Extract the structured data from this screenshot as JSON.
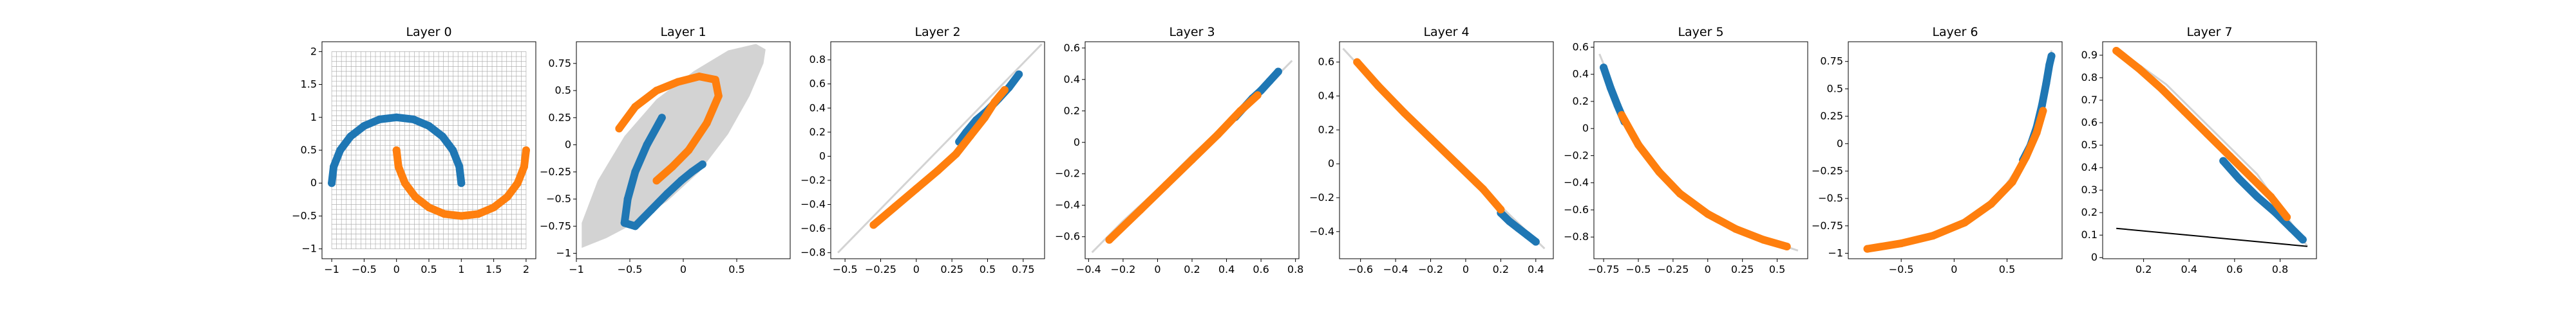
{
  "colors": {
    "blue": "#1f77b4",
    "orange": "#ff7f0e",
    "manifold": "#d3d3d3",
    "grid": "#b0b0b0",
    "axis": "#000000"
  },
  "chart_data": [
    {
      "type": "scatter",
      "title": "Layer 0",
      "xlim": [
        -1.15,
        2.15
      ],
      "ylim": [
        -1.15,
        2.15
      ],
      "xticks": [
        -1.0,
        -0.5,
        0.0,
        0.5,
        1.0,
        1.5,
        2.0
      ],
      "yticks": [
        -1.0,
        -0.5,
        0.0,
        0.5,
        1.0,
        1.5,
        2.0
      ],
      "grid_region": {
        "x": [
          -1.0,
          2.0
        ],
        "y": [
          -1.0,
          2.0
        ]
      },
      "series": [
        {
          "color": "blue",
          "points": [
            [
              -1.0,
              0.0
            ],
            [
              -0.97,
              0.25
            ],
            [
              -0.87,
              0.5
            ],
            [
              -0.71,
              0.71
            ],
            [
              -0.5,
              0.87
            ],
            [
              -0.26,
              0.97
            ],
            [
              0.0,
              1.0
            ],
            [
              0.26,
              0.97
            ],
            [
              0.5,
              0.87
            ],
            [
              0.71,
              0.71
            ],
            [
              0.87,
              0.5
            ],
            [
              0.97,
              0.25
            ],
            [
              1.0,
              0.0
            ]
          ]
        },
        {
          "color": "orange",
          "points": [
            [
              0.0,
              0.5
            ],
            [
              0.03,
              0.25
            ],
            [
              0.13,
              0.0
            ],
            [
              0.29,
              -0.21
            ],
            [
              0.5,
              -0.37
            ],
            [
              0.74,
              -0.47
            ],
            [
              1.0,
              -0.5
            ],
            [
              1.26,
              -0.47
            ],
            [
              1.5,
              -0.37
            ],
            [
              1.71,
              -0.21
            ],
            [
              1.87,
              0.0
            ],
            [
              1.97,
              0.25
            ],
            [
              2.0,
              0.5
            ]
          ]
        }
      ]
    },
    {
      "type": "scatter",
      "title": "Layer 1",
      "xlim": [
        -1.0,
        1.0
      ],
      "ylim": [
        -1.05,
        0.95
      ],
      "xticks": [
        -1.0,
        -0.5,
        0.0,
        0.5
      ],
      "yticks": [
        -1.0,
        -0.75,
        -0.5,
        -0.25,
        0.0,
        0.25,
        0.5,
        0.75
      ],
      "manifold": [
        [
          -0.95,
          -0.95
        ],
        [
          -0.72,
          -0.86
        ],
        [
          -0.45,
          -0.72
        ],
        [
          -0.15,
          -0.52
        ],
        [
          0.15,
          -0.25
        ],
        [
          0.42,
          0.1
        ],
        [
          0.62,
          0.45
        ],
        [
          0.75,
          0.75
        ],
        [
          0.77,
          0.88
        ],
        [
          0.68,
          0.93
        ],
        [
          0.42,
          0.87
        ],
        [
          0.1,
          0.68
        ],
        [
          -0.25,
          0.42
        ],
        [
          -0.55,
          0.08
        ],
        [
          -0.8,
          -0.33
        ],
        [
          -0.95,
          -0.72
        ]
      ],
      "series": [
        {
          "color": "blue",
          "points": [
            [
              -0.2,
              0.25
            ],
            [
              -0.34,
              0.0
            ],
            [
              -0.45,
              -0.25
            ],
            [
              -0.52,
              -0.5
            ],
            [
              -0.55,
              -0.72
            ],
            [
              -0.45,
              -0.75
            ],
            [
              -0.3,
              -0.6
            ],
            [
              -0.15,
              -0.45
            ],
            [
              -0.02,
              -0.33
            ],
            [
              0.08,
              -0.25
            ],
            [
              0.18,
              -0.18
            ]
          ]
        },
        {
          "color": "orange",
          "points": [
            [
              -0.6,
              0.15
            ],
            [
              -0.45,
              0.35
            ],
            [
              -0.25,
              0.5
            ],
            [
              -0.05,
              0.58
            ],
            [
              0.15,
              0.63
            ],
            [
              0.3,
              0.6
            ],
            [
              0.33,
              0.45
            ],
            [
              0.22,
              0.2
            ],
            [
              0.05,
              -0.05
            ],
            [
              -0.1,
              -0.2
            ],
            [
              -0.25,
              -0.33
            ]
          ]
        }
      ]
    },
    {
      "type": "scatter",
      "title": "Layer 2",
      "xlim": [
        -0.6,
        0.9
      ],
      "ylim": [
        -0.85,
        0.95
      ],
      "xticks": [
        -0.5,
        -0.25,
        0.0,
        0.25,
        0.5,
        0.75
      ],
      "yticks": [
        -0.8,
        -0.6,
        -0.4,
        -0.2,
        0.0,
        0.2,
        0.4,
        0.6,
        0.8
      ],
      "manifold": [
        [
          -0.55,
          -0.8
        ],
        [
          0.88,
          0.93
        ]
      ],
      "series": [
        {
          "color": "blue",
          "points": [
            [
              0.3,
              0.12
            ],
            [
              0.35,
              0.2
            ],
            [
              0.42,
              0.3
            ],
            [
              0.5,
              0.38
            ],
            [
              0.58,
              0.48
            ],
            [
              0.65,
              0.57
            ],
            [
              0.72,
              0.68
            ]
          ]
        },
        {
          "color": "orange",
          "points": [
            [
              -0.3,
              -0.57
            ],
            [
              -0.15,
              -0.42
            ],
            [
              0.0,
              -0.27
            ],
            [
              0.15,
              -0.12
            ],
            [
              0.28,
              0.02
            ],
            [
              0.38,
              0.17
            ],
            [
              0.48,
              0.32
            ],
            [
              0.55,
              0.45
            ],
            [
              0.62,
              0.55
            ]
          ]
        }
      ]
    },
    {
      "type": "scatter",
      "title": "Layer 3",
      "xlim": [
        -0.42,
        0.82
      ],
      "ylim": [
        -0.74,
        0.64
      ],
      "xticks": [
        -0.4,
        -0.2,
        0.0,
        0.2,
        0.4,
        0.6,
        0.8
      ],
      "yticks": [
        -0.6,
        -0.4,
        -0.2,
        0.0,
        0.2,
        0.4,
        0.6
      ],
      "manifold": [
        [
          -0.38,
          -0.7
        ],
        [
          -0.2,
          -0.5
        ],
        [
          0.0,
          -0.3
        ],
        [
          0.2,
          -0.08
        ],
        [
          0.4,
          0.12
        ],
        [
          0.6,
          0.32
        ],
        [
          0.78,
          0.52
        ]
      ],
      "series": [
        {
          "color": "blue",
          "points": [
            [
              0.45,
              0.16
            ],
            [
              0.5,
              0.22
            ],
            [
              0.55,
              0.28
            ],
            [
              0.6,
              0.33
            ],
            [
              0.65,
              0.39
            ],
            [
              0.7,
              0.45
            ]
          ]
        },
        {
          "color": "orange",
          "points": [
            [
              -0.28,
              -0.62
            ],
            [
              -0.1,
              -0.43
            ],
            [
              0.05,
              -0.27
            ],
            [
              0.2,
              -0.11
            ],
            [
              0.35,
              0.05
            ],
            [
              0.48,
              0.2
            ],
            [
              0.58,
              0.3
            ]
          ]
        }
      ]
    },
    {
      "type": "scatter",
      "title": "Layer 4",
      "xlim": [
        -0.72,
        0.5
      ],
      "ylim": [
        -0.56,
        0.72
      ],
      "xticks": [
        -0.6,
        -0.4,
        -0.2,
        0.0,
        0.2,
        0.4
      ],
      "yticks": [
        -0.4,
        -0.2,
        0.0,
        0.2,
        0.4,
        0.6
      ],
      "manifold": [
        [
          -0.7,
          0.68
        ],
        [
          -0.45,
          0.4
        ],
        [
          -0.2,
          0.15
        ],
        [
          0.0,
          -0.05
        ],
        [
          0.2,
          -0.25
        ],
        [
          0.45,
          -0.5
        ]
      ],
      "series": [
        {
          "color": "blue",
          "points": [
            [
              0.2,
              -0.29
            ],
            [
              0.25,
              -0.34
            ],
            [
              0.3,
              -0.38
            ],
            [
              0.35,
              -0.42
            ],
            [
              0.4,
              -0.46
            ]
          ]
        },
        {
          "color": "orange",
          "points": [
            [
              -0.62,
              0.6
            ],
            [
              -0.5,
              0.46
            ],
            [
              -0.35,
              0.3
            ],
            [
              -0.2,
              0.15
            ],
            [
              -0.05,
              0.0
            ],
            [
              0.1,
              -0.15
            ],
            [
              0.2,
              -0.27
            ]
          ]
        }
      ]
    },
    {
      "type": "scatter",
      "title": "Layer 5",
      "xlim": [
        -0.82,
        0.72
      ],
      "ylim": [
        -0.96,
        0.64
      ],
      "xticks": [
        -0.75,
        -0.5,
        -0.25,
        0.0,
        0.25,
        0.5
      ],
      "yticks": [
        -0.8,
        -0.6,
        -0.4,
        -0.2,
        0.0,
        0.2,
        0.4,
        0.6
      ],
      "manifold": [
        [
          -0.78,
          0.55
        ],
        [
          -0.6,
          0.1
        ],
        [
          -0.4,
          -0.25
        ],
        [
          -0.2,
          -0.48
        ],
        [
          0.0,
          -0.63
        ],
        [
          0.3,
          -0.78
        ],
        [
          0.65,
          -0.9
        ]
      ],
      "series": [
        {
          "color": "blue",
          "points": [
            [
              -0.75,
              0.45
            ],
            [
              -0.7,
              0.3
            ],
            [
              -0.65,
              0.17
            ],
            [
              -0.6,
              0.05
            ]
          ]
        },
        {
          "color": "orange",
          "points": [
            [
              -0.62,
              0.1
            ],
            [
              -0.5,
              -0.12
            ],
            [
              -0.35,
              -0.32
            ],
            [
              -0.2,
              -0.48
            ],
            [
              0.0,
              -0.63
            ],
            [
              0.2,
              -0.74
            ],
            [
              0.4,
              -0.82
            ],
            [
              0.57,
              -0.87
            ]
          ]
        }
      ]
    },
    {
      "type": "scatter",
      "title": "Layer 6",
      "xlim": [
        -1.0,
        1.02
      ],
      "ylim": [
        -1.05,
        0.93
      ],
      "xticks": [
        -0.5,
        0.0,
        0.5
      ],
      "yticks": [
        -1.0,
        -0.75,
        -0.5,
        -0.25,
        0.0,
        0.25,
        0.5,
        0.75
      ],
      "manifold": [
        [
          -0.85,
          -0.97
        ],
        [
          -0.4,
          -0.88
        ],
        [
          0.0,
          -0.75
        ],
        [
          0.4,
          -0.5
        ],
        [
          0.65,
          -0.15
        ],
        [
          0.82,
          0.3
        ],
        [
          0.92,
          0.85
        ]
      ],
      "series": [
        {
          "color": "blue",
          "points": [
            [
              0.65,
              -0.15
            ],
            [
              0.72,
              -0.02
            ],
            [
              0.78,
              0.15
            ],
            [
              0.83,
              0.35
            ],
            [
              0.87,
              0.55
            ],
            [
              0.9,
              0.72
            ],
            [
              0.92,
              0.8
            ]
          ]
        },
        {
          "color": "orange",
          "points": [
            [
              -0.82,
              -0.96
            ],
            [
              -0.5,
              -0.91
            ],
            [
              -0.2,
              -0.84
            ],
            [
              0.1,
              -0.72
            ],
            [
              0.35,
              -0.55
            ],
            [
              0.55,
              -0.35
            ],
            [
              0.68,
              -0.12
            ],
            [
              0.78,
              0.1
            ],
            [
              0.84,
              0.3
            ]
          ]
        }
      ]
    },
    {
      "type": "scatter",
      "title": "Layer 7",
      "xlim": [
        0.02,
        0.96
      ],
      "ylim": [
        -0.005,
        0.96
      ],
      "xticks": [
        0.2,
        0.4,
        0.6,
        0.8
      ],
      "yticks": [
        0.0,
        0.1,
        0.2,
        0.3,
        0.4,
        0.5,
        0.6,
        0.7,
        0.8,
        0.9
      ],
      "manifold": [
        [
          0.08,
          0.93
        ],
        [
          0.3,
          0.77
        ],
        [
          0.5,
          0.57
        ],
        [
          0.7,
          0.37
        ],
        [
          0.92,
          0.05
        ]
      ],
      "decision_line": [
        [
          0.08,
          0.13
        ],
        [
          0.92,
          0.05
        ]
      ],
      "series": [
        {
          "color": "blue",
          "points": [
            [
              0.55,
              0.43
            ],
            [
              0.62,
              0.35
            ],
            [
              0.7,
              0.27
            ],
            [
              0.78,
              0.2
            ],
            [
              0.85,
              0.13
            ],
            [
              0.9,
              0.08
            ]
          ]
        },
        {
          "color": "orange",
          "points": [
            [
              0.08,
              0.92
            ],
            [
              0.18,
              0.84
            ],
            [
              0.28,
              0.75
            ],
            [
              0.38,
              0.65
            ],
            [
              0.48,
              0.55
            ],
            [
              0.58,
              0.45
            ],
            [
              0.68,
              0.35
            ],
            [
              0.76,
              0.27
            ],
            [
              0.83,
              0.18
            ]
          ]
        }
      ]
    }
  ]
}
